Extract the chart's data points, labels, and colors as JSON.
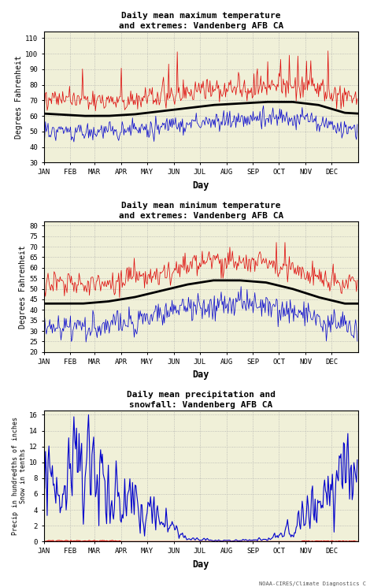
{
  "title1": "Daily mean maximum temperature\nand extremes: Vandenberg AFB CA",
  "title2": "Daily mean minimum temperature\nand extremes: Vandenberg AFB CA",
  "title3": "Daily mean precipitation and\nsnowfall: Vandenberg AFB CA",
  "ylabel1": "Degrees Fahrenheit",
  "ylabel2": "Degrees Fahrenheit",
  "ylabel3": "Precip in hundredths of inches\nSnow in tenths",
  "xlabel": "Day",
  "months": [
    "JAN",
    "FEB",
    "MAR",
    "APR",
    "MAY",
    "JUN",
    "JUL",
    "AUG",
    "SEP",
    "OCT",
    "NOV",
    "DEC"
  ],
  "background_color": "#f0f0d8",
  "grid_color": "#aaaaaa",
  "line_red": "#dd0000",
  "line_blue": "#0000cc",
  "line_black": "#000000",
  "credit": "NOAA-CIRES/Climate Diagnostics C",
  "max_mean": [
    61,
    60,
    60,
    61,
    63,
    65,
    67,
    68,
    69,
    69,
    67,
    62
  ],
  "max_ylim": [
    30,
    114
  ],
  "max_yticks": [
    30,
    40,
    50,
    60,
    70,
    80,
    90,
    100,
    110
  ],
  "min_mean": [
    43,
    43,
    44,
    46,
    49,
    52,
    54,
    54,
    53,
    50,
    46,
    43
  ],
  "min_ylim": [
    20,
    82
  ],
  "min_yticks": [
    20,
    25,
    30,
    35,
    40,
    45,
    50,
    55,
    60,
    65,
    70,
    75,
    80
  ],
  "precip_ylim": [
    0,
    16.5
  ],
  "precip_yticks": [
    0,
    2,
    4,
    6,
    8,
    10,
    12,
    14,
    16
  ]
}
